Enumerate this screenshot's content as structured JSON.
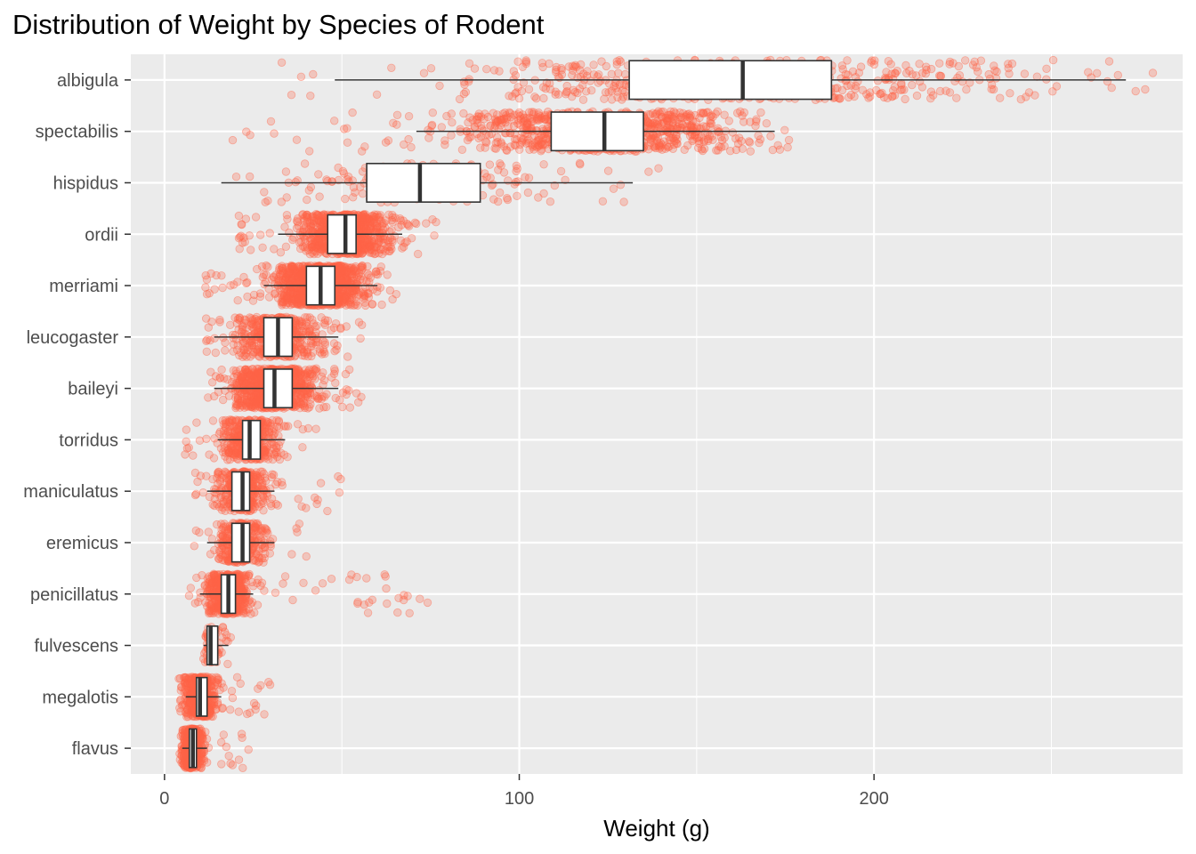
{
  "chart_data": {
    "type": "boxplot",
    "title": "Distribution of Weight by Species of Rodent",
    "xlabel": "Weight (g)",
    "ylabel": "",
    "xlim": [
      -9.5,
      287
    ],
    "x_ticks": [
      0,
      100,
      200
    ],
    "grid": true,
    "legend": "none",
    "point_color": "#ff6347",
    "panel_color": "#ebebeb",
    "categories": [
      "albigula",
      "spectabilis",
      "hispidus",
      "ordii",
      "merriami",
      "leucogaster",
      "baileyi",
      "torridus",
      "maniculatus",
      "eremicus",
      "penicillatus",
      "fulvescens",
      "megalotis",
      "flavus"
    ],
    "boxes": [
      {
        "species": "albigula",
        "whisker_low": 48,
        "q1": 131,
        "median": 163,
        "q3": 188,
        "whisker_high": 271,
        "points_min": 30,
        "points_max": 280
      },
      {
        "species": "spectabilis",
        "whisker_low": 71,
        "q1": 109,
        "median": 124,
        "q3": 135,
        "whisker_high": 172,
        "points_min": 12,
        "points_max": 178
      },
      {
        "species": "hispidus",
        "whisker_low": 16,
        "q1": 57,
        "median": 72,
        "q3": 89,
        "whisker_high": 132,
        "points_min": 16,
        "points_max": 140
      },
      {
        "species": "ordii",
        "whisker_low": 32,
        "q1": 46,
        "median": 51,
        "q3": 54,
        "whisker_high": 67,
        "points_min": 20,
        "points_max": 77
      },
      {
        "species": "merriami",
        "whisker_low": 28,
        "q1": 40,
        "median": 44,
        "q3": 48,
        "whisker_high": 60,
        "points_min": 10,
        "points_max": 66
      },
      {
        "species": "leucogaster",
        "whisker_low": 14,
        "q1": 28,
        "median": 32,
        "q3": 36,
        "whisker_high": 49,
        "points_min": 11,
        "points_max": 56
      },
      {
        "species": "baileyi",
        "whisker_low": 14,
        "q1": 28,
        "median": 31,
        "q3": 36,
        "whisker_high": 49,
        "points_min": 12,
        "points_max": 56
      },
      {
        "species": "torridus",
        "whisker_low": 15,
        "q1": 22,
        "median": 24,
        "q3": 27,
        "whisker_high": 34,
        "points_min": 5,
        "points_max": 45
      },
      {
        "species": "maniculatus",
        "whisker_low": 12,
        "q1": 19,
        "median": 22,
        "q3": 24,
        "whisker_high": 31,
        "points_min": 8,
        "points_max": 50
      },
      {
        "species": "eremicus",
        "whisker_low": 12,
        "q1": 19,
        "median": 22,
        "q3": 24,
        "whisker_high": 31,
        "points_min": 7,
        "points_max": 41
      },
      {
        "species": "penicillatus",
        "whisker_low": 10,
        "q1": 16,
        "median": 18,
        "q3": 20,
        "whisker_high": 25,
        "points_min": 5,
        "points_max": 75
      },
      {
        "species": "fulvescens",
        "whisker_low": 11,
        "q1": 12,
        "median": 13,
        "q3": 15,
        "whisker_high": 18,
        "points_min": 11,
        "points_max": 19
      },
      {
        "species": "megalotis",
        "whisker_low": 6,
        "q1": 9,
        "median": 10,
        "q3": 12,
        "whisker_high": 16,
        "points_min": 4,
        "points_max": 30
      },
      {
        "species": "flavus",
        "whisker_low": 5,
        "q1": 7,
        "median": 8,
        "q3": 9,
        "whisker_high": 12,
        "points_min": 4,
        "points_max": 24
      }
    ]
  }
}
